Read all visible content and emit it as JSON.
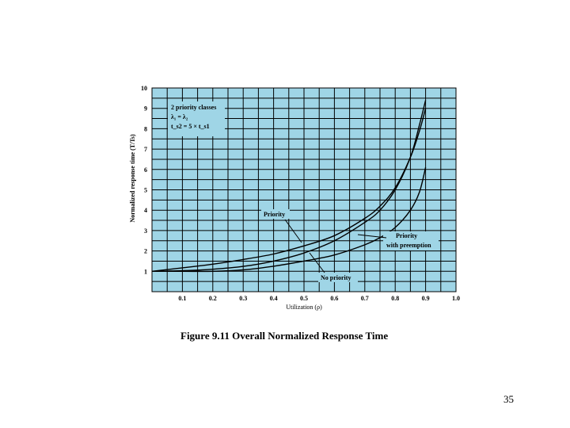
{
  "chart_data": {
    "type": "line",
    "xlabel": "Utilization (ρ)",
    "ylabel": "Normalized response time (T/Ts)",
    "xlim": [
      0,
      1.0
    ],
    "ylim": [
      0,
      10
    ],
    "xticks": [
      "0.1",
      "0.2",
      "0.3",
      "0.4",
      "0.5",
      "0.6",
      "0.7",
      "0.8",
      "0.9",
      "1.0"
    ],
    "yticks": [
      "1",
      "2",
      "3",
      "4",
      "5",
      "6",
      "7",
      "8",
      "9",
      "10"
    ],
    "grid": true,
    "background": "#9fd5e6",
    "series": [
      {
        "name": "Priority",
        "x": [
          0,
          0.1,
          0.2,
          0.3,
          0.4,
          0.5,
          0.6,
          0.7,
          0.75,
          0.8,
          0.85,
          0.88,
          0.9
        ],
        "y": [
          1.0,
          1.17,
          1.35,
          1.58,
          1.85,
          2.25,
          2.75,
          3.6,
          4.2,
          5.1,
          6.6,
          7.9,
          9.0
        ]
      },
      {
        "name": "Priority with preemption",
        "x": [
          0,
          0.1,
          0.2,
          0.3,
          0.4,
          0.5,
          0.6,
          0.7,
          0.75,
          0.8,
          0.85,
          0.88,
          0.9
        ],
        "y": [
          1.0,
          1.0,
          1.0,
          1.07,
          1.25,
          1.5,
          1.8,
          2.3,
          2.65,
          3.15,
          4.0,
          4.9,
          6.1
        ]
      },
      {
        "name": "No priority",
        "x": [
          0,
          0.1,
          0.2,
          0.3,
          0.4,
          0.5,
          0.6,
          0.7,
          0.75,
          0.8,
          0.85,
          0.88,
          0.9
        ],
        "y": [
          1.0,
          1.03,
          1.1,
          1.24,
          1.5,
          1.9,
          2.5,
          3.4,
          4.0,
          5.0,
          6.6,
          8.2,
          9.4
        ]
      }
    ],
    "annotations": {
      "box_lines": [
        "2 priority classes",
        "λ₁ = λ₂",
        "t_s2 = 5 × t_s1"
      ],
      "priority": "Priority",
      "preemption_1": "Priority",
      "preemption_2": "with preemption",
      "no_priority": "No priority"
    }
  },
  "caption": "Figure 9.11 Overall Normalized Response Time",
  "slide_number": "35"
}
